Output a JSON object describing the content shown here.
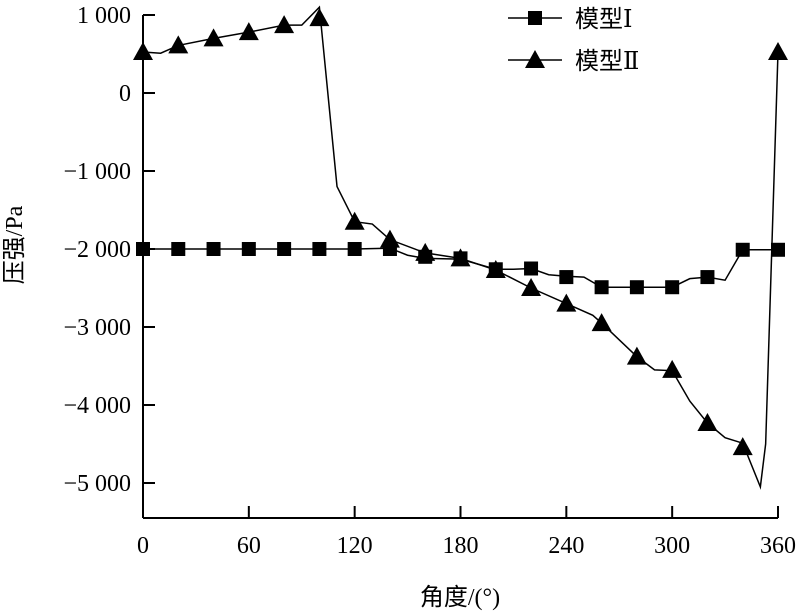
{
  "chart_data": {
    "type": "line",
    "title": "",
    "xlabel": "角度/(°)",
    "ylabel": "压强/Pa",
    "xlim": [
      0,
      360
    ],
    "ylim": [
      -5500,
      1000
    ],
    "xticks": [
      0,
      60,
      120,
      180,
      240,
      300,
      360
    ],
    "xtick_labels": [
      "0",
      "60",
      "120",
      "180",
      "240",
      "300",
      "360"
    ],
    "yticks": [
      1000,
      0,
      -1000,
      -2000,
      -3000,
      -4000,
      -5000
    ],
    "ytick_labels": [
      "1 000",
      "0",
      "−1 000",
      "−2 000",
      "−3 000",
      "−4 000",
      "−5 000"
    ],
    "grid": false,
    "legend_position": "top-right",
    "series": [
      {
        "name": "模型Ⅰ",
        "marker": "square",
        "x": [
          0,
          20,
          40,
          60,
          80,
          100,
          120,
          140,
          160,
          180,
          200,
          220,
          240,
          260,
          280,
          300,
          320,
          340,
          360
        ],
        "values": [
          -2000,
          -2000,
          -2000,
          -2000,
          -2000,
          -2000,
          -2000,
          -2000,
          -2100,
          -2120,
          -2260,
          -2250,
          -2360,
          -2490,
          -2490,
          -2490,
          -2360,
          -2010,
          -2010
        ],
        "curve_x": [
          0,
          20,
          40,
          60,
          80,
          100,
          120,
          140,
          150,
          160,
          180,
          200,
          210,
          220,
          230,
          240,
          250,
          260,
          280,
          300,
          310,
          320,
          330,
          340,
          360
        ],
        "curve_y": [
          -2000,
          -2000,
          -2000,
          -2000,
          -2000,
          -2000,
          -2000,
          -1990,
          -2080,
          -2120,
          -2130,
          -2260,
          -2260,
          -2250,
          -2330,
          -2350,
          -2360,
          -2490,
          -2490,
          -2490,
          -2380,
          -2360,
          -2400,
          -2010,
          -2010
        ]
      },
      {
        "name": "模型Ⅱ",
        "marker": "triangle",
        "x": [
          0,
          20,
          40,
          60,
          80,
          100,
          120,
          140,
          160,
          180,
          200,
          220,
          240,
          260,
          280,
          300,
          320,
          340,
          360
        ],
        "values": [
          525,
          610,
          700,
          780,
          870,
          960,
          -1650,
          -1880,
          -2050,
          -2120,
          -2270,
          -2500,
          -2700,
          -2950,
          -3380,
          -3550,
          -4230,
          -4540,
          525
        ],
        "curve_x": [
          0,
          10,
          20,
          40,
          60,
          80,
          90,
          100,
          110,
          120,
          130,
          140,
          160,
          180,
          200,
          220,
          240,
          255,
          260,
          280,
          290,
          300,
          310,
          320,
          330,
          340,
          350,
          353,
          360
        ],
        "curve_y": [
          525,
          510,
          610,
          700,
          780,
          870,
          870,
          1100,
          -1200,
          -1650,
          -1680,
          -1880,
          -2050,
          -2120,
          -2270,
          -2500,
          -2700,
          -2850,
          -2950,
          -3380,
          -3550,
          -3560,
          -3950,
          -4230,
          -4420,
          -4490,
          -5050,
          -4500,
          525
        ]
      }
    ]
  }
}
